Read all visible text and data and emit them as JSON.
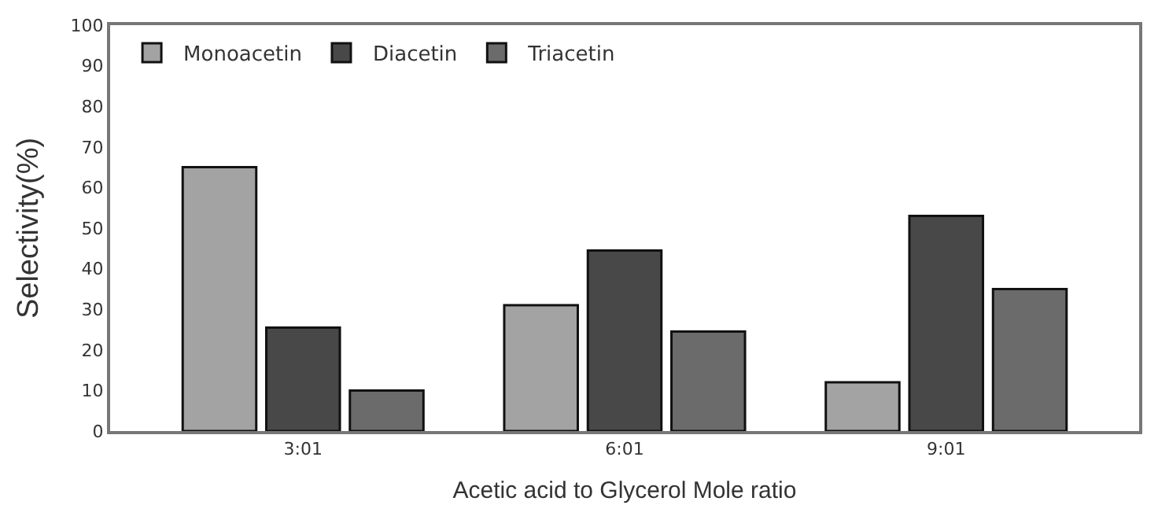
{
  "chart_data": {
    "type": "bar",
    "xlabel": "Acetic acid to Glycerol Mole ratio",
    "ylabel": "Selectivity(%)",
    "categories": [
      "3:01",
      "6:01",
      "9:01"
    ],
    "series": [
      {
        "name": "Monoacetin",
        "color": "#a3a3a3",
        "values": [
          65,
          31,
          12
        ]
      },
      {
        "name": "Diacetin",
        "color": "#484848",
        "values": [
          25.5,
          44.5,
          53
        ]
      },
      {
        "name": "Triacetin",
        "color": "#6b6b6b",
        "values": [
          10,
          24.5,
          35
        ]
      }
    ],
    "ylim": [
      0,
      100
    ],
    "yticks": [
      0,
      10,
      20,
      30,
      40,
      50,
      60,
      70,
      80,
      90,
      100
    ],
    "legend": "top left"
  }
}
